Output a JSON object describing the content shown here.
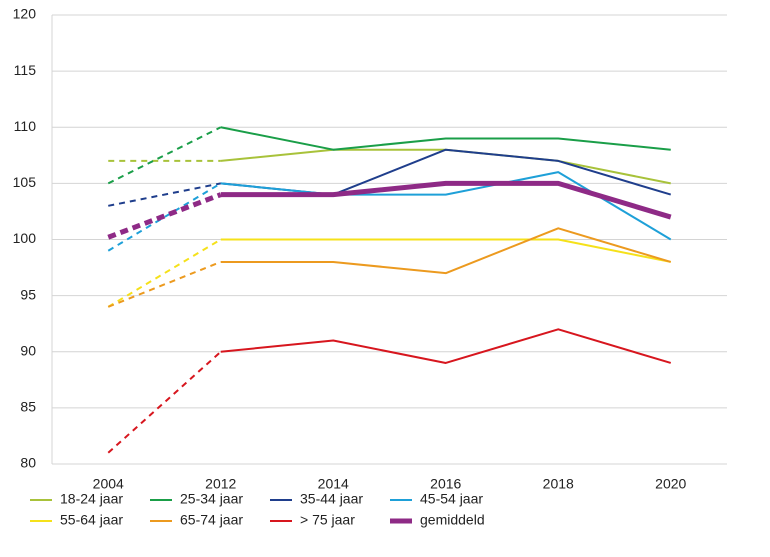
{
  "chart_data": {
    "type": "line",
    "categories": [
      "2004",
      "2012",
      "2014",
      "2016",
      "2018",
      "2020"
    ],
    "series": [
      {
        "name": "18-24 jaar",
        "color": "#a8c23a",
        "values": [
          107,
          107,
          108,
          108,
          107,
          105
        ]
      },
      {
        "name": "25-34 jaar",
        "color": "#1a9e48",
        "values": [
          105,
          110,
          108,
          109,
          109,
          108
        ]
      },
      {
        "name": "35-44 jaar",
        "color": "#1f3e8c",
        "values": [
          103,
          105,
          104,
          108,
          107,
          104
        ]
      },
      {
        "name": "45-54 jaar",
        "color": "#1ea0d8",
        "values": [
          99,
          105,
          104,
          104,
          106,
          100
        ]
      },
      {
        "name": "55-64 jaar",
        "color": "#f5e11a",
        "values": [
          94,
          100,
          100,
          100,
          100,
          98
        ]
      },
      {
        "name": "65-74 jaar",
        "color": "#ec9a1f",
        "values": [
          94,
          98,
          98,
          97,
          101,
          98
        ]
      },
      {
        "name": "> 75 jaar",
        "color": "#d7161e",
        "values": [
          81,
          90,
          91,
          89,
          92,
          89
        ]
      },
      {
        "name": "gemiddeld",
        "color": "#8e2a86",
        "values": [
          100.2,
          104,
          104,
          105,
          105,
          102
        ]
      }
    ],
    "ylim": [
      80,
      120
    ],
    "yticks": [
      80,
      85,
      90,
      95,
      100,
      105,
      110,
      115,
      120
    ],
    "grid": true
  }
}
